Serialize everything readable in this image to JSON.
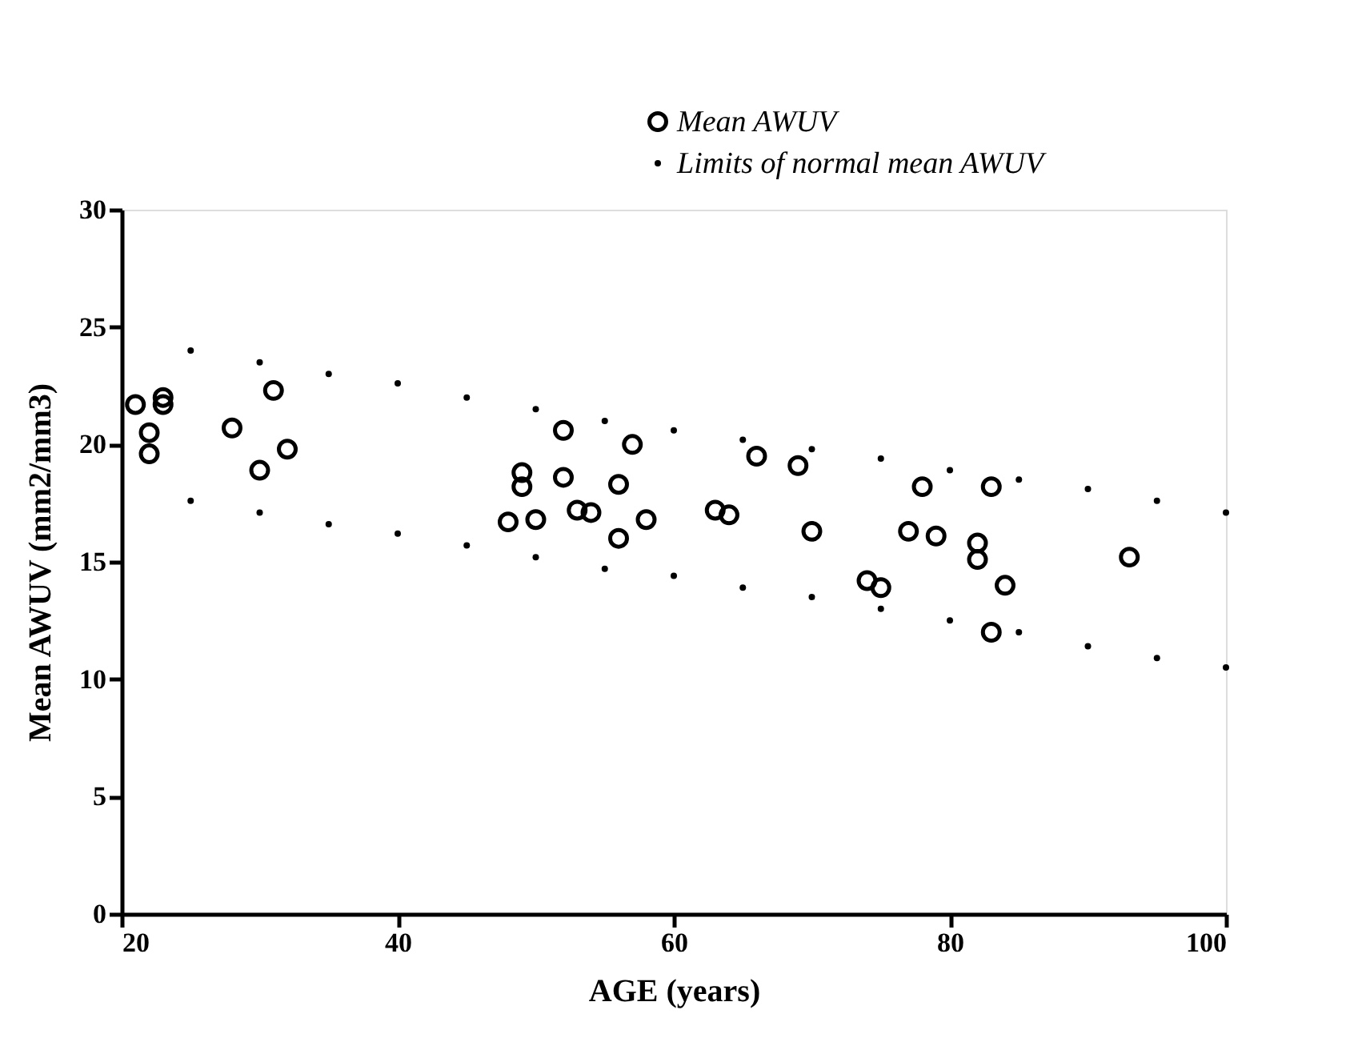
{
  "chart_data": {
    "type": "scatter",
    "xlabel": "AGE (years)",
    "ylabel": "Mean AWUV (mm2/mm3)",
    "xlim": [
      20,
      100
    ],
    "xticks": [
      20,
      40,
      60,
      80,
      100
    ],
    "ylim": [
      0,
      30
    ],
    "yticks": [
      0,
      5,
      10,
      15,
      20,
      25,
      30
    ],
    "grid": false,
    "legend": "top right",
    "marker": "circle",
    "series": [
      {
        "name": "Mean AWUV",
        "color": "#000000",
        "x": [
          21,
          22,
          22,
          23,
          23,
          28,
          30,
          31,
          32,
          48,
          49,
          49,
          50,
          52,
          52,
          53,
          54,
          56,
          56,
          57,
          58,
          63,
          64,
          66,
          69,
          70,
          74,
          75,
          77,
          78,
          79,
          82,
          82,
          83,
          83,
          84,
          93
        ],
        "values": [
          21.7,
          20.5,
          19.6,
          22,
          21.7,
          20.7,
          18.9,
          22.3,
          19.8,
          16.7,
          18.8,
          18.2,
          16.8,
          20.6,
          18.6,
          17.2,
          17.1,
          18.3,
          16,
          20,
          16.8,
          17.2,
          17,
          19.5,
          19.1,
          16.3,
          14.2,
          13.9,
          16.3,
          18.2,
          16.1,
          15.8,
          15.1,
          18.2,
          12,
          14,
          15.2
        ]
      },
      {
        "name": "Limits of normal mean AWUV",
        "color": "#000000",
        "x": [
          25,
          30,
          35,
          40,
          45,
          50,
          55,
          60,
          65,
          70,
          75,
          80,
          85,
          90,
          95,
          100,
          25,
          30,
          35,
          40,
          45,
          50,
          55,
          60,
          65,
          70,
          75,
          80,
          85,
          90,
          95,
          100
        ],
        "values": [
          24,
          23.5,
          23,
          22.6,
          22,
          21.5,
          21,
          20.6,
          20.2,
          19.8,
          19.4,
          18.9,
          18.5,
          18.1,
          17.6,
          17.1,
          17.6,
          17.1,
          16.6,
          16.2,
          15.7,
          15.2,
          14.7,
          14.4,
          13.9,
          13.5,
          13,
          12.5,
          12,
          11.4,
          10.9,
          10.5
        ]
      }
    ]
  }
}
